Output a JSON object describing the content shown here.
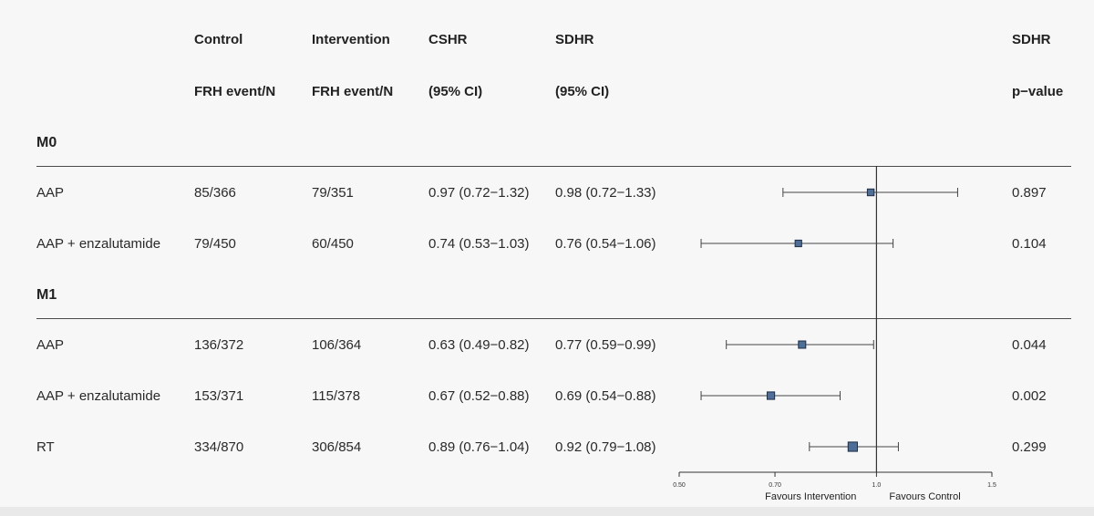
{
  "headers": {
    "control_1": "Control",
    "control_2": "FRH event/N",
    "intervention_1": "Intervention",
    "intervention_2": "FRH event/N",
    "cshr_1": "CSHR",
    "cshr_2": "(95% CI)",
    "sdhr_1": "SDHR",
    "sdhr_2": "(95% CI)",
    "pval_1": "SDHR",
    "pval_2": "p−value"
  },
  "groups": [
    {
      "label": "M0",
      "rows": [
        {
          "name": "AAP",
          "control": "85/366",
          "intervention": "79/351",
          "cshr": "0.97 (0.72−1.32)",
          "sdhr": "0.98 (0.72−1.33)",
          "p": "0.897"
        },
        {
          "name": "AAP + enzalutamide",
          "control": "79/450",
          "intervention": "60/450",
          "cshr": "0.74 (0.53−1.03)",
          "sdhr": "0.76 (0.54−1.06)",
          "p": "0.104"
        }
      ]
    },
    {
      "label": "M1",
      "rows": [
        {
          "name": "AAP",
          "control": "136/372",
          "intervention": "106/364",
          "cshr": "0.63 (0.49−0.82)",
          "sdhr": "0.77 (0.59−0.99)",
          "p": "0.044"
        },
        {
          "name": "AAP + enzalutamide",
          "control": "153/371",
          "intervention": "115/378",
          "cshr": "0.67 (0.52−0.88)",
          "sdhr": "0.69 (0.54−0.88)",
          "p": "0.002"
        },
        {
          "name": "RT",
          "control": "334/870",
          "intervention": "306/854",
          "cshr": "0.89 (0.76−1.04)",
          "sdhr": "0.92 (0.79−1.08)",
          "p": "0.299"
        }
      ]
    }
  ],
  "chart_data": {
    "type": "forest",
    "scale": "log",
    "xlim": [
      0.5,
      1.5
    ],
    "ticks": [
      0.5,
      0.7,
      1.0,
      1.5
    ],
    "tick_labels": [
      "0.50",
      "0.70",
      "1.0",
      "1.5"
    ],
    "reference_line": 1.0,
    "left_label": "Favours Intervention",
    "right_label": "Favours Control",
    "marker_color": "#4d6e99",
    "points": [
      {
        "group": "M0",
        "name": "AAP",
        "est": 0.98,
        "lo": 0.72,
        "hi": 1.33,
        "weight": 0.6
      },
      {
        "group": "M0",
        "name": "AAP + enzalutamide",
        "est": 0.76,
        "lo": 0.54,
        "hi": 1.06,
        "weight": 0.55
      },
      {
        "group": "M1",
        "name": "AAP",
        "est": 0.77,
        "lo": 0.59,
        "hi": 0.99,
        "weight": 0.75
      },
      {
        "group": "M1",
        "name": "AAP + enzalutamide",
        "est": 0.69,
        "lo": 0.54,
        "hi": 0.88,
        "weight": 0.8
      },
      {
        "group": "M1",
        "name": "RT",
        "est": 0.92,
        "lo": 0.79,
        "hi": 1.08,
        "weight": 1.3
      }
    ]
  }
}
